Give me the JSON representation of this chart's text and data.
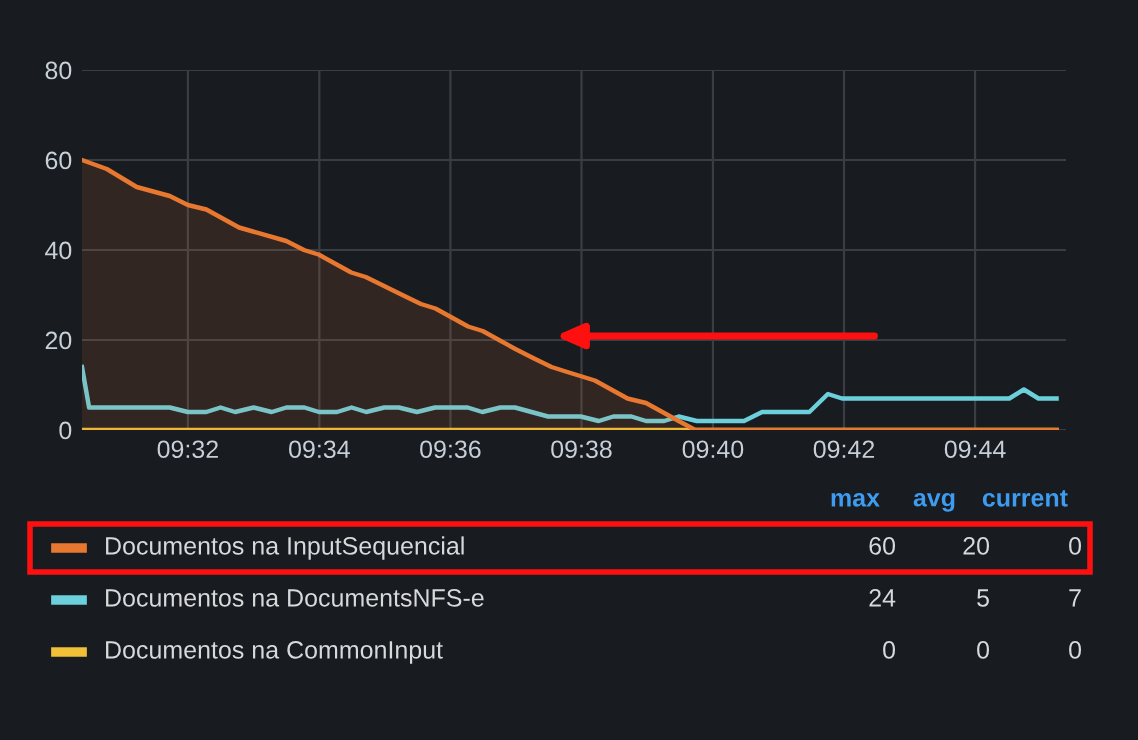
{
  "chart_data": {
    "type": "line",
    "xlim": [
      9.5064,
      9.7564
    ],
    "ylim": [
      0,
      80
    ],
    "xticks": [
      {
        "value": 9.5333,
        "label": "09:32"
      },
      {
        "value": 9.5667,
        "label": "09:34"
      },
      {
        "value": 9.6,
        "label": "09:36"
      },
      {
        "value": 9.6333,
        "label": "09:38"
      },
      {
        "value": 9.6667,
        "label": "09:40"
      },
      {
        "value": 9.7,
        "label": "09:42"
      },
      {
        "value": 9.7333,
        "label": "09:44"
      }
    ],
    "yticks": [
      0,
      20,
      40,
      60,
      80
    ],
    "grid": true,
    "legend": "bottom",
    "marker": "none",
    "line_style": "solid",
    "series": [
      {
        "name": "Documentos na InputSequencial",
        "type": "area",
        "color": "#e8782f",
        "x": [
          9.5064,
          9.5127,
          9.5203,
          9.5287,
          9.5333,
          9.538,
          9.5463,
          9.5583,
          9.5628,
          9.5665,
          9.5748,
          9.5785,
          9.5878,
          9.5925,
          9.5962,
          9.6045,
          9.6082,
          9.6165,
          9.621,
          9.6257,
          9.6293,
          9.633,
          9.6367,
          9.645,
          9.6497,
          9.658,
          9.6622,
          9.754
        ],
        "values": [
          60,
          58,
          54,
          52,
          50,
          49,
          45,
          42,
          40,
          39,
          35,
          34,
          30,
          28,
          27,
          23,
          22,
          18,
          16,
          14,
          13,
          12,
          11,
          7,
          6,
          2,
          0,
          0
        ]
      },
      {
        "name": "Documentos na DocumentsNFS-e",
        "color": "#6ccfdc",
        "x": [
          9.5064,
          9.5082,
          9.5287,
          9.5333,
          9.538,
          9.5416,
          9.5453,
          9.55,
          9.5546,
          9.5583,
          9.5629,
          9.5666,
          9.5712,
          9.5749,
          9.5786,
          9.5832,
          9.5869,
          9.5915,
          9.5961,
          9.6044,
          9.6081,
          9.6127,
          9.6164,
          9.6248,
          9.6331,
          9.6377,
          9.6414,
          9.646,
          9.6497,
          9.6543,
          9.658,
          9.6626,
          9.6746,
          9.6792,
          9.6912,
          9.6959,
          9.6995,
          9.742,
          9.7457,
          9.7494,
          9.754
        ],
        "values": [
          14,
          5,
          5,
          4,
          4,
          5,
          4,
          5,
          4,
          5,
          5,
          4,
          4,
          5,
          4,
          5,
          5,
          4,
          5,
          5,
          4,
          5,
          5,
          3,
          3,
          2,
          3,
          3,
          2,
          2,
          3,
          2,
          2,
          4,
          4,
          8,
          7,
          7,
          9,
          7,
          7
        ]
      },
      {
        "name": "Documentos na CommonInput",
        "color": "#f2c037",
        "x": [
          9.5064,
          9.754
        ],
        "values": [
          0,
          0
        ]
      }
    ],
    "annotations": [
      "max",
      "avg",
      "current",
      "60",
      "20",
      "0",
      "24",
      "5",
      "7",
      "0",
      "0",
      "0"
    ]
  }
}
